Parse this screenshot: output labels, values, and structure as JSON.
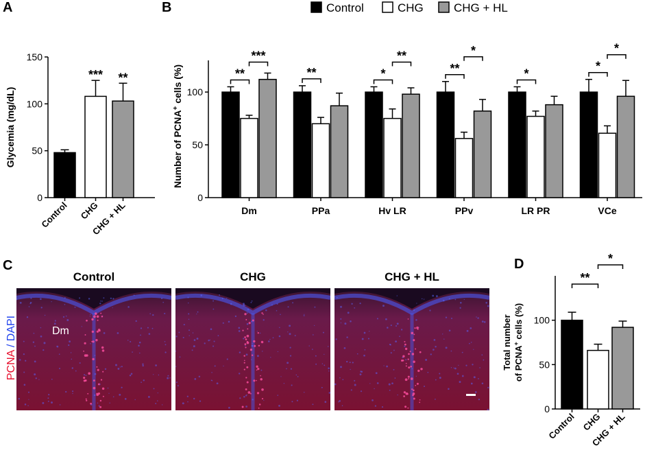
{
  "panel_letters": {
    "a": "A",
    "b": "B",
    "c": "C",
    "d": "D"
  },
  "colors": {
    "control": "#000000",
    "chg": "#ffffff",
    "chg_hl": "#999999",
    "pcna": "#e8102e",
    "dapi": "#2244ee"
  },
  "chart_data": [
    {
      "panel": "A",
      "type": "bar",
      "categories": [
        "Control",
        "CHG",
        "CHG + HL"
      ],
      "values": [
        48,
        108,
        103
      ],
      "errors": [
        3,
        17,
        19
      ],
      "ylabel": "Glycemia (mg/dL)",
      "ylim": [
        0,
        150
      ],
      "yticks": [
        "0",
        "50",
        "100",
        "150"
      ],
      "significance": [
        "",
        "***",
        "**"
      ],
      "grid": false
    },
    {
      "panel": "B",
      "type": "bar",
      "categories": [
        "Dm",
        "PPa",
        "Hv LR",
        "PPv",
        "LR PR",
        "VCe"
      ],
      "series": [
        {
          "name": "Control",
          "values": [
            100,
            100,
            100,
            100,
            100,
            100
          ],
          "errors": [
            5,
            6,
            5,
            10,
            5,
            12
          ]
        },
        {
          "name": "CHG",
          "values": [
            75,
            70,
            75,
            56,
            77,
            61
          ],
          "errors": [
            3,
            6,
            9,
            6,
            5,
            7
          ]
        },
        {
          "name": "CHG + HL",
          "values": [
            112,
            87,
            98,
            82,
            88,
            96
          ],
          "errors": [
            6,
            12,
            6,
            11,
            8,
            15
          ]
        }
      ],
      "ylabel_main": "Number of PCNA",
      "ylabel_sup": "+",
      "ylabel_tail": " cells (%)",
      "ylim": [
        0,
        130
      ],
      "yticks": [
        "0",
        "50",
        "100"
      ],
      "legend": {
        "placement": "top",
        "entries": [
          "Control",
          "CHG",
          "CHG + HL"
        ]
      },
      "comparisons": [
        {
          "category": 0,
          "from": 0,
          "to": 1,
          "label": "**"
        },
        {
          "category": 0,
          "from": 1,
          "to": 2,
          "label": "***"
        },
        {
          "category": 1,
          "from": 0,
          "to": 1,
          "label": "**"
        },
        {
          "category": 2,
          "from": 0,
          "to": 1,
          "label": "*"
        },
        {
          "category": 2,
          "from": 1,
          "to": 2,
          "label": "**"
        },
        {
          "category": 3,
          "from": 0,
          "to": 1,
          "label": "**"
        },
        {
          "category": 3,
          "from": 1,
          "to": 2,
          "label": "*"
        },
        {
          "category": 4,
          "from": 0,
          "to": 1,
          "label": "*"
        },
        {
          "category": 5,
          "from": 0,
          "to": 1,
          "label": "*"
        },
        {
          "category": 5,
          "from": 1,
          "to": 2,
          "label": "*"
        }
      ],
      "grid": false
    },
    {
      "panel": "D",
      "type": "bar",
      "categories": [
        "Control",
        "CHG",
        "CHG + HL"
      ],
      "values": [
        100,
        66,
        92
      ],
      "errors": [
        9,
        7,
        7
      ],
      "ylabel_line1": "Total number",
      "ylabel_line2_main": "of PCNA",
      "ylabel_line2_sup": "+",
      "ylabel_line2_tail": " cells (%)",
      "ylim": [
        0,
        150
      ],
      "yticks": [
        "0",
        "50",
        "100"
      ],
      "comparisons": [
        {
          "from": 0,
          "to": 1,
          "label": "**"
        },
        {
          "from": 1,
          "to": 2,
          "label": "*"
        }
      ],
      "grid": false
    }
  ],
  "micrographs": {
    "titles": [
      "Control",
      "CHG",
      "CHG + HL"
    ],
    "region_label": "Dm",
    "stain_pcna": "PCNA",
    "stain_sep": " / ",
    "stain_dapi": "DAPI"
  }
}
